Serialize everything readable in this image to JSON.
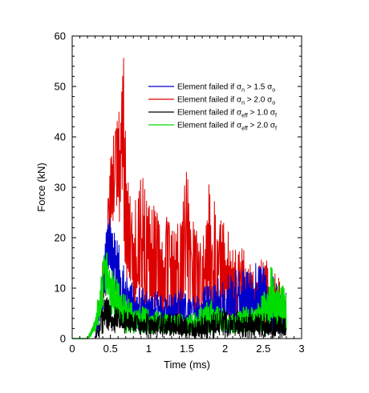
{
  "chart_data": {
    "type": "line",
    "title": "",
    "xlabel": "Time (ms)",
    "ylabel": "Force (kN)",
    "xlim": [
      0,
      3
    ],
    "ylim": [
      0,
      60
    ],
    "x_ticks": [
      "0",
      "0.5",
      "1",
      "1.5",
      "2",
      "2.5",
      "3"
    ],
    "y_ticks": [
      "0",
      "10",
      "20",
      "30",
      "40",
      "50",
      "60"
    ],
    "grid": false,
    "legend_position": "top-right",
    "series": [
      {
        "name": "Element failed if σ_n > 1.5 σ_o",
        "legend": {
          "prefix": "Element failed if ",
          "sym": "σ",
          "sub1": "n",
          "rel": " > 1.5 ",
          "sym2": "σ",
          "sub2": "o"
        },
        "color": "#0000cc",
        "envelope": {
          "x": [
            0.3,
            0.38,
            0.42,
            0.45,
            0.48,
            0.5,
            0.55,
            0.6,
            0.65,
            0.7,
            0.8,
            0.9,
            1.0,
            1.2,
            1.4,
            1.6,
            1.8,
            2.0,
            2.2,
            2.4,
            2.6,
            2.8
          ],
          "max": [
            0,
            12,
            18,
            24,
            27,
            26,
            22,
            20,
            16,
            14,
            12,
            10,
            10,
            9,
            10,
            9,
            11,
            13,
            14,
            16,
            13,
            9
          ],
          "min": [
            0,
            2,
            6,
            10,
            12,
            12,
            8,
            6,
            3,
            2,
            1,
            1,
            1,
            1,
            1,
            1,
            1,
            1,
            1,
            1,
            1,
            1
          ]
        }
      },
      {
        "name": "Element failed if σ_n > 2.0 σ_o",
        "legend": {
          "prefix": "Element failed if ",
          "sym": "σ",
          "sub1": "n",
          "rel": " > 2.0 ",
          "sym2": "σ",
          "sub2": "o"
        },
        "color": "#dd0000",
        "envelope": {
          "x": [
            0.3,
            0.4,
            0.45,
            0.5,
            0.55,
            0.6,
            0.65,
            0.68,
            0.7,
            0.75,
            0.8,
            0.85,
            0.9,
            1.0,
            1.1,
            1.2,
            1.3,
            1.4,
            1.5,
            1.6,
            1.7,
            1.8,
            1.9,
            2.0,
            2.1,
            2.2,
            2.3,
            2.4,
            2.5,
            2.6,
            2.7,
            2.8
          ],
          "max": [
            0,
            16,
            23,
            38,
            44,
            47,
            50,
            58,
            40,
            32,
            28,
            30,
            33,
            30,
            25,
            25,
            24,
            24,
            35,
            22,
            20,
            32,
            24,
            25,
            20,
            19,
            16,
            14,
            18,
            14,
            12,
            9
          ],
          "min": [
            0,
            6,
            10,
            20,
            25,
            26,
            18,
            14,
            10,
            6,
            4,
            3,
            3,
            2,
            2,
            2,
            2,
            2,
            2,
            2,
            2,
            2,
            2,
            2,
            2,
            2,
            2,
            2,
            2,
            2,
            2,
            2
          ]
        }
      },
      {
        "name": "Element failed if σ_eff > 1.0 σ_f",
        "legend": {
          "prefix": "Element failed if ",
          "sym": "σ",
          "sub1": "eff",
          "rel": " > 1.0 ",
          "sym2": "σ",
          "sub2": "f"
        },
        "color": "#000000",
        "envelope": {
          "x": [
            0.3,
            0.35,
            0.4,
            0.45,
            0.5,
            0.6,
            0.7,
            0.8,
            1.0,
            1.2,
            1.4,
            1.6,
            1.8,
            2.0,
            2.2,
            2.4,
            2.6,
            2.8
          ],
          "max": [
            0,
            3,
            8,
            9,
            7,
            6,
            6,
            5,
            5,
            5,
            5,
            4,
            5,
            6,
            5,
            5,
            5,
            4
          ],
          "min": [
            0,
            0,
            1,
            2,
            1,
            1,
            1,
            1,
            0,
            0,
            0,
            0,
            0,
            0,
            0,
            0,
            0,
            0
          ]
        }
      },
      {
        "name": "Element failed if σ_eff > 2.0 σ_f",
        "legend": {
          "prefix": "Element failed if ",
          "sym": "σ",
          "sub1": "eff",
          "rel": " > 2.0 ",
          "sym2": "σ",
          "sub2": "f"
        },
        "color": "#00dd00",
        "envelope": {
          "x": [
            0.2,
            0.3,
            0.35,
            0.4,
            0.43,
            0.45,
            0.5,
            0.6,
            0.7,
            0.8,
            1.0,
            1.2,
            1.4,
            1.6,
            1.8,
            2.0,
            2.2,
            2.4,
            2.5,
            2.6,
            2.7,
            2.8
          ],
          "max": [
            0,
            4,
            10,
            15,
            19,
            18,
            14,
            12,
            9,
            7,
            6,
            5,
            5,
            5,
            8,
            6,
            6,
            7,
            10,
            15,
            12,
            10
          ],
          "min": [
            0,
            1,
            3,
            6,
            8,
            7,
            4,
            2,
            1,
            1,
            1,
            1,
            1,
            1,
            1,
            1,
            1,
            1,
            1,
            1,
            1,
            1
          ]
        }
      }
    ]
  }
}
